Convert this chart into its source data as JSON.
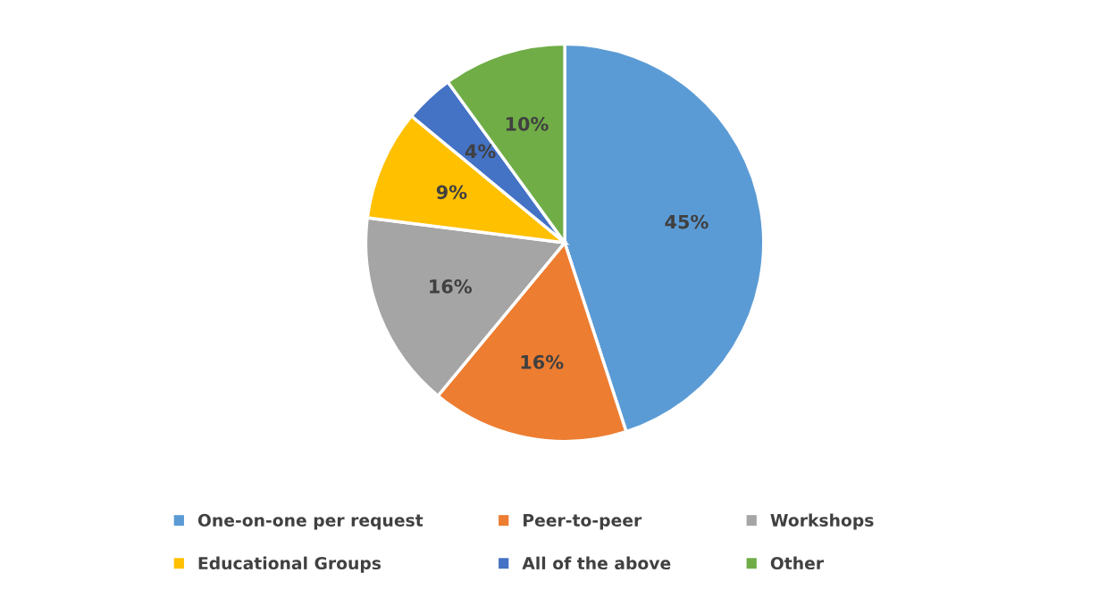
{
  "chart_data": {
    "type": "pie",
    "categories": [
      "One-on-one per request",
      "Peer-to-peer",
      "Workshops",
      "Educational Groups",
      "All of the above",
      "Other"
    ],
    "values": [
      45,
      16,
      16,
      9,
      4,
      10
    ],
    "value_labels": [
      "45%",
      "16%",
      "16%",
      "9%",
      "4%",
      "10%"
    ],
    "colors": [
      "#5b9bd5",
      "#ed7d31",
      "#a5a5a5",
      "#ffc000",
      "#4472c4",
      "#70ad47"
    ],
    "legend": "bottom"
  }
}
